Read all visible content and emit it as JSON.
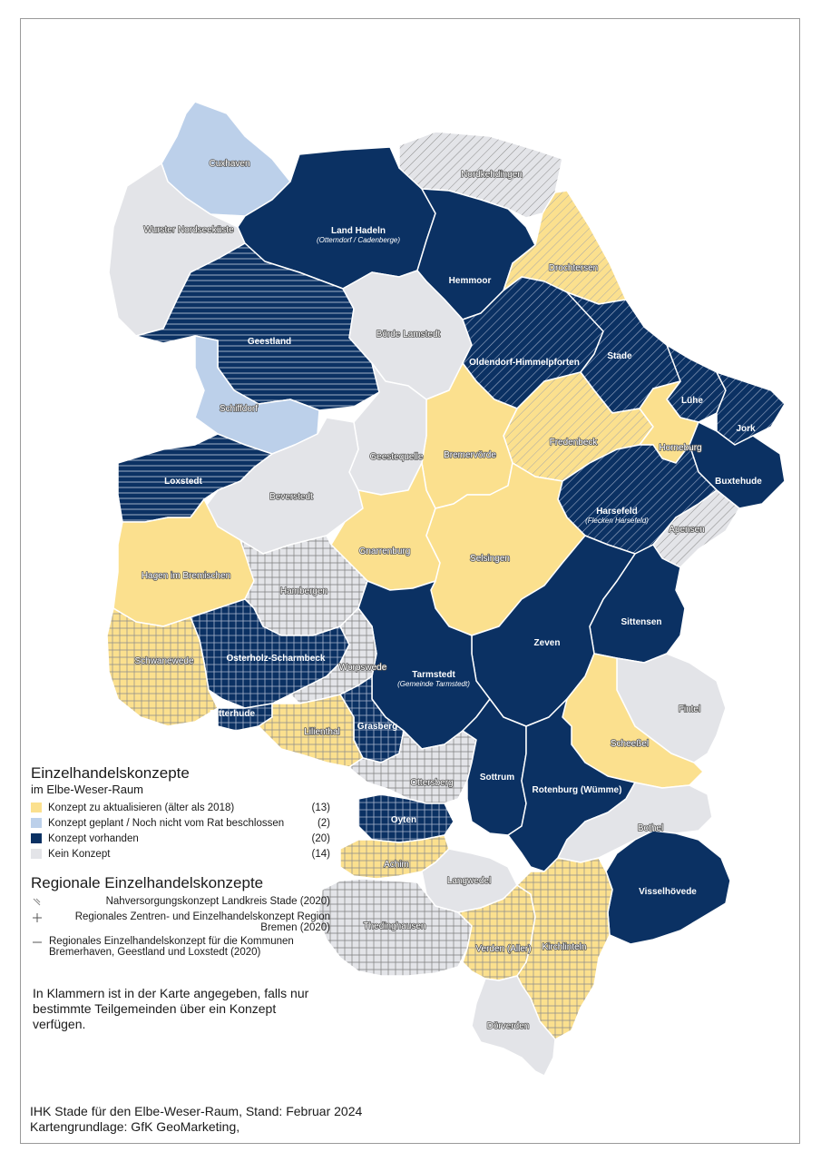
{
  "colors": {
    "update": "#fbe08e",
    "planned": "#bcd0ea",
    "exists": "#0b3163",
    "none": "#e3e4e8",
    "border": "#ffffff"
  },
  "regions": {
    "cuxhaven": "Cuxhaven",
    "nordkehdingen": "Nordkehdingen",
    "land_hadeln": "Land Hadeln",
    "land_hadeln_sub": "(Otterndorf / Cadenberge)",
    "wurster": "Wurster Nordseeküste",
    "hemmoor": "Hemmoor",
    "drochtersen": "Drochtersen",
    "geestland": "Geestland",
    "boerde_lamstedt": "Börde Lamstedt",
    "oldendorf": "Oldendorf-Himmelpforten",
    "stade": "Stade",
    "schiffdorf": "Schiffdorf",
    "luehe": "Lühe",
    "jork": "Jork",
    "fredenbeck": "Fredenbeck",
    "horneburg": "Horneburg",
    "bremervoerde": "Bremervörde",
    "geestequelle": "Geestequelle",
    "loxstedt": "Loxstedt",
    "buxtehude": "Buxtehude",
    "harsefeld": "Harsefeld",
    "harsefeld_sub": "(Flecken Harsefeld)",
    "beverstedt": "Beverstedt",
    "apensen": "Apensen",
    "gnarrenburg": "Gnarrenburg",
    "selsingen": "Selsingen",
    "hagen": "Hagen im Bremischen",
    "hambergen": "Hambergen",
    "sittensen": "Sittensen",
    "zeven": "Zeven",
    "osterholz": "Osterholz-Scharmbeck",
    "schwanewede": "Schwanewede",
    "tarmstedt": "Tarmstedt",
    "tarmstedt_sub": "(Gemeinde Tarmstedt)",
    "worpswede": "Worpswede",
    "fintel": "Fintel",
    "ritterhude": "Ritterhude",
    "grasberg": "Grasberg",
    "lilienthal": "Lilienthal",
    "scheessel": "Scheeßel",
    "ottersberg": "Ottersberg",
    "sottrum": "Sottrum",
    "rotenburg": "Rotenburg (Wümme)",
    "oyten": "Oyten",
    "bothel": "Bothel",
    "achim": "Achim",
    "langwedel": "Langwedel",
    "visselhoevede": "Visselhövede",
    "thedinghausen": "Thedinghausen",
    "verden": "Verden (Aller)",
    "kirchlinteln": "Kirchlinteln",
    "doerverden": "Dörverden"
  },
  "legend": {
    "title": "Einzelhandelskonzepte",
    "subtitle": "im Elbe-Weser-Raum",
    "items": [
      {
        "label": "Konzept zu aktualisieren (älter als 2018)",
        "count": "(13)",
        "color": "#fbe08e"
      },
      {
        "label": "Konzept geplant / Noch nicht vom Rat beschlossen",
        "count": "(2)",
        "color": "#bcd0ea"
      },
      {
        "label": "Konzept vorhanden",
        "count": "(20)",
        "color": "#0b3163"
      },
      {
        "label": "Kein Konzept",
        "count": "(14)",
        "color": "#e3e4e8"
      }
    ],
    "regional_title": "Regionale Einzelhandelskonzepte",
    "regional": [
      {
        "icon": "diagonal-hatch-icon",
        "label": "Nahversorgungskonzept Landkreis Stade (2020)"
      },
      {
        "icon": "cross-hatch-icon",
        "label": "Regionales Zentren- und Einzelhandelskonzept Region Bremen (2020)"
      },
      {
        "icon": "horizontal-hatch-icon",
        "label": "Regionales Einzelhandelskonzept für die Kommunen Bremerhaven, Geestland und Loxstedt (2020)"
      }
    ]
  },
  "note": "In Klammern ist in der Karte angegeben, falls nur bestimmte Teilgemeinden über ein Konzept verfügen.",
  "credits": {
    "line1": "IHK Stade für den Elbe-Weser-Raum, Stand: Februar 2024",
    "line2": "Kartengrundlage: GfK GeoMarketing,"
  }
}
